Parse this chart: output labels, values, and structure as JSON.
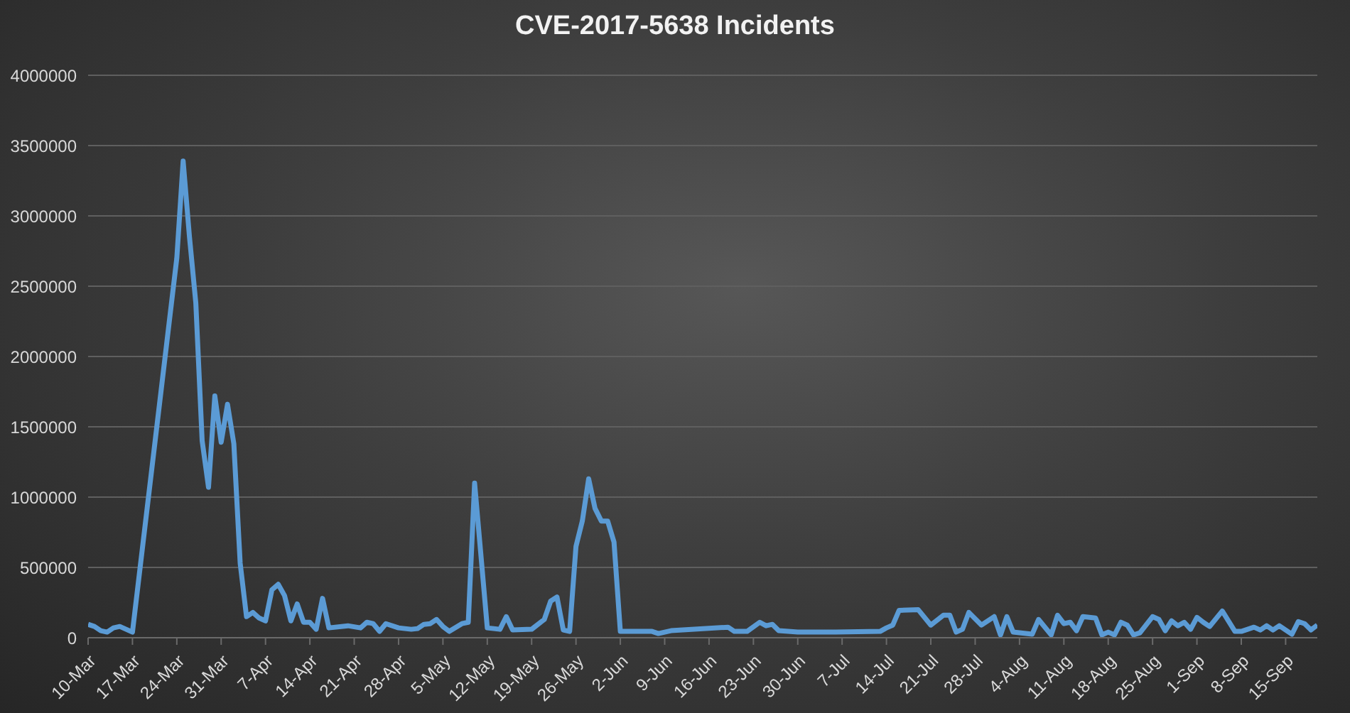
{
  "chart_data": {
    "type": "line",
    "title": "CVE-2017-5638  Incidents",
    "x": [
      "--03-10",
      "--03-11",
      "--03-12",
      "--03-13",
      "--03-14",
      "--03-15",
      "--03-16",
      "--03-17",
      "--03-24",
      "--03-25",
      "--03-26",
      "--03-27",
      "--03-28",
      "--03-29",
      "--03-30",
      "--03-31",
      "--04-01",
      "--04-02",
      "--04-03",
      "--04-04",
      "--04-05",
      "--04-06",
      "--04-07",
      "--04-08",
      "--04-09",
      "--04-10",
      "--04-11",
      "--04-12",
      "--04-13",
      "--04-14",
      "--04-15",
      "--04-16",
      "--04-17",
      "--04-20",
      "--04-22",
      "--04-23",
      "--04-24",
      "--04-25",
      "--04-26",
      "--04-28",
      "--04-30",
      "--05-01",
      "--05-02",
      "--05-03",
      "--05-04",
      "--05-05",
      "--05-06",
      "--05-08",
      "--05-09",
      "--05-10",
      "--05-12",
      "--05-14",
      "--05-15",
      "--05-16",
      "--05-19",
      "--05-21",
      "--05-22",
      "--05-23",
      "--05-24",
      "--05-25",
      "--05-26",
      "--05-27",
      "--05-28",
      "--05-29",
      "--05-30",
      "--05-31",
      "--06-01",
      "--06-02",
      "--06-07",
      "--06-08",
      "--06-10",
      "--06-19",
      "--06-20",
      "--06-22",
      "--06-24",
      "--06-25",
      "--06-26",
      "--06-27",
      "--06-30",
      "--07-06",
      "--07-13",
      "--07-14",
      "--07-15",
      "--07-16",
      "--07-19",
      "--07-21",
      "--07-23",
      "--07-24",
      "--07-25",
      "--07-26",
      "--07-27",
      "--07-29",
      "--07-31",
      "--08-01",
      "--08-02",
      "--08-03",
      "--08-06",
      "--08-07",
      "--08-09",
      "--08-10",
      "--08-11",
      "--08-12",
      "--08-13",
      "--08-14",
      "--08-16",
      "--08-17",
      "--08-18",
      "--08-19",
      "--08-20",
      "--08-21",
      "--08-22",
      "--08-23",
      "--08-25",
      "--08-26",
      "--08-27",
      "--08-28",
      "--08-29",
      "--08-30",
      "--08-31",
      "--09-01",
      "--09-02",
      "--09-03",
      "--09-05",
      "--09-07",
      "--09-08",
      "--09-10",
      "--09-11",
      "--09-12",
      "--09-13",
      "--09-14",
      "--09-16",
      "--09-17",
      "--09-18",
      "--09-19",
      "--09-20"
    ],
    "series": [
      {
        "color": "#5b9bd5",
        "values": [
          95000,
          80000,
          50000,
          40000,
          70000,
          80000,
          60000,
          40000,
          2700000,
          3390000,
          2850000,
          2380000,
          1400000,
          1070000,
          1720000,
          1390000,
          1660000,
          1380000,
          530000,
          150000,
          180000,
          140000,
          120000,
          340000,
          380000,
          300000,
          120000,
          240000,
          110000,
          110000,
          60000,
          280000,
          70000,
          85000,
          70000,
          110000,
          100000,
          45000,
          100000,
          70000,
          60000,
          65000,
          95000,
          100000,
          130000,
          80000,
          45000,
          100000,
          110000,
          1100000,
          70000,
          60000,
          150000,
          55000,
          60000,
          130000,
          260000,
          290000,
          55000,
          45000,
          650000,
          830000,
          1130000,
          920000,
          830000,
          830000,
          680000,
          45000,
          45000,
          30000,
          50000,
          75000,
          45000,
          45000,
          110000,
          85000,
          95000,
          50000,
          40000,
          40000,
          45000,
          70000,
          90000,
          195000,
          200000,
          90000,
          160000,
          160000,
          40000,
          60000,
          180000,
          90000,
          150000,
          20000,
          150000,
          40000,
          25000,
          130000,
          20000,
          160000,
          100000,
          110000,
          50000,
          150000,
          140000,
          20000,
          40000,
          20000,
          110000,
          90000,
          20000,
          35000,
          150000,
          130000,
          50000,
          120000,
          85000,
          110000,
          60000,
          145000,
          110000,
          80000,
          190000,
          45000,
          45000,
          75000,
          55000,
          85000,
          55000,
          85000,
          25000,
          115000,
          100000,
          55000,
          90000
        ]
      }
    ],
    "xlim": [
      "--03-10",
      "--09-20"
    ],
    "xticks": [
      {
        "value": "--03-10",
        "label": "10-Mar"
      },
      {
        "value": "--03-17",
        "label": "17-Mar"
      },
      {
        "value": "--03-24",
        "label": "24-Mar"
      },
      {
        "value": "--03-31",
        "label": "31-Mar"
      },
      {
        "value": "--04-07",
        "label": "7-Apr"
      },
      {
        "value": "--04-14",
        "label": "14-Apr"
      },
      {
        "value": "--04-21",
        "label": "21-Apr"
      },
      {
        "value": "--04-28",
        "label": "28-Apr"
      },
      {
        "value": "--05-05",
        "label": "5-May"
      },
      {
        "value": "--05-12",
        "label": "12-May"
      },
      {
        "value": "--05-19",
        "label": "19-May"
      },
      {
        "value": "--05-26",
        "label": "26-May"
      },
      {
        "value": "--06-02",
        "label": "2-Jun"
      },
      {
        "value": "--06-09",
        "label": "9-Jun"
      },
      {
        "value": "--06-16",
        "label": "16-Jun"
      },
      {
        "value": "--06-23",
        "label": "23-Jun"
      },
      {
        "value": "--06-30",
        "label": "30-Jun"
      },
      {
        "value": "--07-07",
        "label": "7-Jul"
      },
      {
        "value": "--07-14",
        "label": "14-Jul"
      },
      {
        "value": "--07-21",
        "label": "21-Jul"
      },
      {
        "value": "--07-28",
        "label": "28-Jul"
      },
      {
        "value": "--08-04",
        "label": "4-Aug"
      },
      {
        "value": "--08-11",
        "label": "11-Aug"
      },
      {
        "value": "--08-18",
        "label": "18-Aug"
      },
      {
        "value": "--08-25",
        "label": "25-Aug"
      },
      {
        "value": "--09-01",
        "label": "1-Sep"
      },
      {
        "value": "--09-08",
        "label": "8-Sep"
      },
      {
        "value": "--09-15",
        "label": "15-Sep"
      }
    ],
    "ylim": [
      0,
      4000000
    ],
    "yticks": [
      0,
      500000,
      1000000,
      1500000,
      2000000,
      2500000,
      3000000,
      3500000,
      4000000
    ],
    "grid": "y",
    "marker": "none",
    "line_style": "solid",
    "legend": false
  }
}
